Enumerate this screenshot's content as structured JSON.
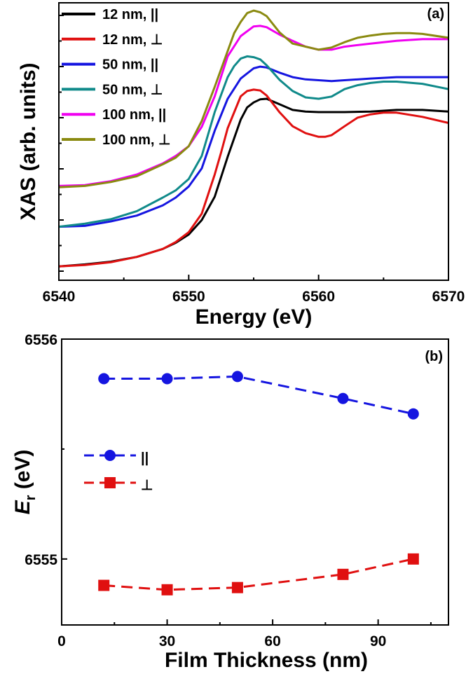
{
  "chart_data": [
    {
      "panel_label": "(a)",
      "type": "line",
      "xlabel": "Energy (eV)",
      "ylabel": "XAS (arb. units)",
      "xlim": [
        6540,
        6570
      ],
      "ylim": [
        0,
        100
      ],
      "x_ticks": [
        6540,
        6550,
        6560,
        6570
      ],
      "y_tick_labels_shown": false,
      "grid": false,
      "legend_position": "top-left",
      "series": [
        {
          "name": "12 nm, ||",
          "color": "#000000",
          "x": [
            6540,
            6542,
            6544,
            6546,
            6548,
            6549,
            6550,
            6551,
            6552,
            6553,
            6554,
            6554.5,
            6555,
            6555.5,
            6556,
            6557,
            6558,
            6559,
            6560,
            6561,
            6562,
            6564,
            6566,
            6568,
            6570
          ],
          "y": [
            5,
            5.7,
            6.7,
            8.4,
            11.3,
            13.5,
            16.5,
            21.7,
            30.1,
            44.5,
            57.9,
            62.3,
            64.1,
            65.2,
            65.4,
            63.4,
            61.4,
            60.8,
            60.6,
            60.6,
            60.6,
            60.8,
            61.4,
            61.4,
            60.8
          ]
        },
        {
          "name": "12 nm, ⊥",
          "color": "#e01010",
          "x": [
            6540,
            6542,
            6544,
            6546,
            6548,
            6549,
            6550,
            6551,
            6552,
            6552.5,
            6553,
            6554,
            6554.5,
            6555,
            6555.5,
            6556,
            6557,
            6558,
            6559,
            6560,
            6560.5,
            6561,
            6562,
            6563,
            6564,
            6565,
            6566,
            6568,
            6570
          ],
          "y": [
            5,
            5.5,
            6.5,
            8.4,
            11.3,
            13.8,
            17.3,
            24,
            38.1,
            46.2,
            54.8,
            66.3,
            68.2,
            68.7,
            68.4,
            66.6,
            60.5,
            55.5,
            53,
            51.7,
            51.7,
            52.3,
            55.5,
            58.6,
            59.8,
            60.4,
            60.4,
            58.9,
            56.7
          ]
        },
        {
          "name": "50 nm, ||",
          "color": "#1515e0",
          "x": [
            6540,
            6542,
            6544,
            6546,
            6548,
            6549,
            6550,
            6551,
            6552,
            6553,
            6554,
            6555,
            6555.5,
            6556,
            6557,
            6558,
            6559,
            6560,
            6561,
            6562,
            6564,
            6566,
            6568,
            6570
          ],
          "y": [
            19.3,
            19.6,
            21.2,
            23.3,
            27,
            29.8,
            33.8,
            40.3,
            53.9,
            65.4,
            72.7,
            76.4,
            77,
            76.7,
            74.8,
            73.2,
            72.4,
            72.1,
            71.8,
            72.1,
            72.7,
            73.2,
            73.2,
            73.2
          ]
        },
        {
          "name": "50 nm, ⊥",
          "color": "#108a8a",
          "x": [
            6540,
            6542,
            6544,
            6546,
            6548,
            6549,
            6550,
            6551,
            6552,
            6553,
            6553.5,
            6554,
            6554.5,
            6555,
            6555.5,
            6556,
            6557,
            6558,
            6559,
            6560,
            6561,
            6562,
            6563,
            6564,
            6565,
            6566,
            6568,
            6570
          ],
          "y": [
            19.3,
            20.4,
            22,
            24.9,
            29.8,
            32.4,
            36.5,
            44.8,
            60.6,
            73.2,
            77.2,
            79.9,
            80.7,
            80.4,
            79.6,
            77.5,
            72.2,
            68.2,
            65.9,
            65.4,
            66.2,
            68.9,
            70.3,
            71.1,
            71.6,
            71.6,
            70.8,
            68.9
          ]
        },
        {
          "name": "100 nm, ||",
          "color": "#f000f0",
          "x": [
            6540,
            6542,
            6544,
            6546,
            6548,
            6549,
            6550,
            6551,
            6552,
            6553,
            6554,
            6555,
            6555.5,
            6556,
            6557,
            6558,
            6559,
            6560,
            6561,
            6562,
            6564,
            6566,
            6568,
            6570
          ],
          "y": [
            34,
            34.3,
            35.7,
            38.1,
            42.1,
            44.8,
            48.3,
            55.3,
            66.3,
            80.7,
            88,
            91.5,
            91.7,
            91.2,
            88.5,
            86.3,
            84.2,
            83.1,
            83.1,
            84.2,
            85.3,
            86.3,
            86.9,
            86.9
          ]
        },
        {
          "name": "100 nm, ⊥",
          "color": "#8a8a10",
          "x": [
            6540,
            6542,
            6544,
            6546,
            6548,
            6549,
            6550,
            6551,
            6552,
            6553,
            6553.5,
            6554,
            6554.5,
            6555,
            6555.5,
            6556,
            6557,
            6558,
            6559,
            6560,
            6561,
            6562,
            6563,
            6564,
            6565,
            6566,
            6567,
            6568,
            6570
          ],
          "y": [
            33.5,
            34,
            35.4,
            37.5,
            41.8,
            44.2,
            48.3,
            57.4,
            69.7,
            82.6,
            89.1,
            93.1,
            96.3,
            97.2,
            96.6,
            95.2,
            89.3,
            85.3,
            84.2,
            83.1,
            83.9,
            85.8,
            87.4,
            88.2,
            88.8,
            89.1,
            89.1,
            88.8,
            87.4
          ]
        }
      ]
    },
    {
      "panel_label": "(b)",
      "type": "line",
      "xlabel": "Film Thickness (nm)",
      "ylabel": "E",
      "ylabel_subscript": "r",
      "ylabel_suffix": " (eV)",
      "xlim": [
        0,
        110
      ],
      "ylim": [
        6554.7,
        6556
      ],
      "x_ticks": [
        0,
        30,
        60,
        90
      ],
      "y_ticks": [
        6555,
        6556
      ],
      "grid": false,
      "legend_position": "center-left",
      "series": [
        {
          "name": "||",
          "color": "#1515e0",
          "marker": "circle",
          "line": "dashed",
          "x": [
            12,
            30,
            50,
            80,
            100
          ],
          "y": [
            6555.82,
            6555.82,
            6555.83,
            6555.73,
            6555.66
          ]
        },
        {
          "name": "⊥",
          "color": "#e01010",
          "marker": "square",
          "line": "dashed",
          "x": [
            12,
            30,
            50,
            80,
            100
          ],
          "y": [
            6554.88,
            6554.86,
            6554.87,
            6554.93,
            6555.0
          ]
        }
      ]
    }
  ]
}
